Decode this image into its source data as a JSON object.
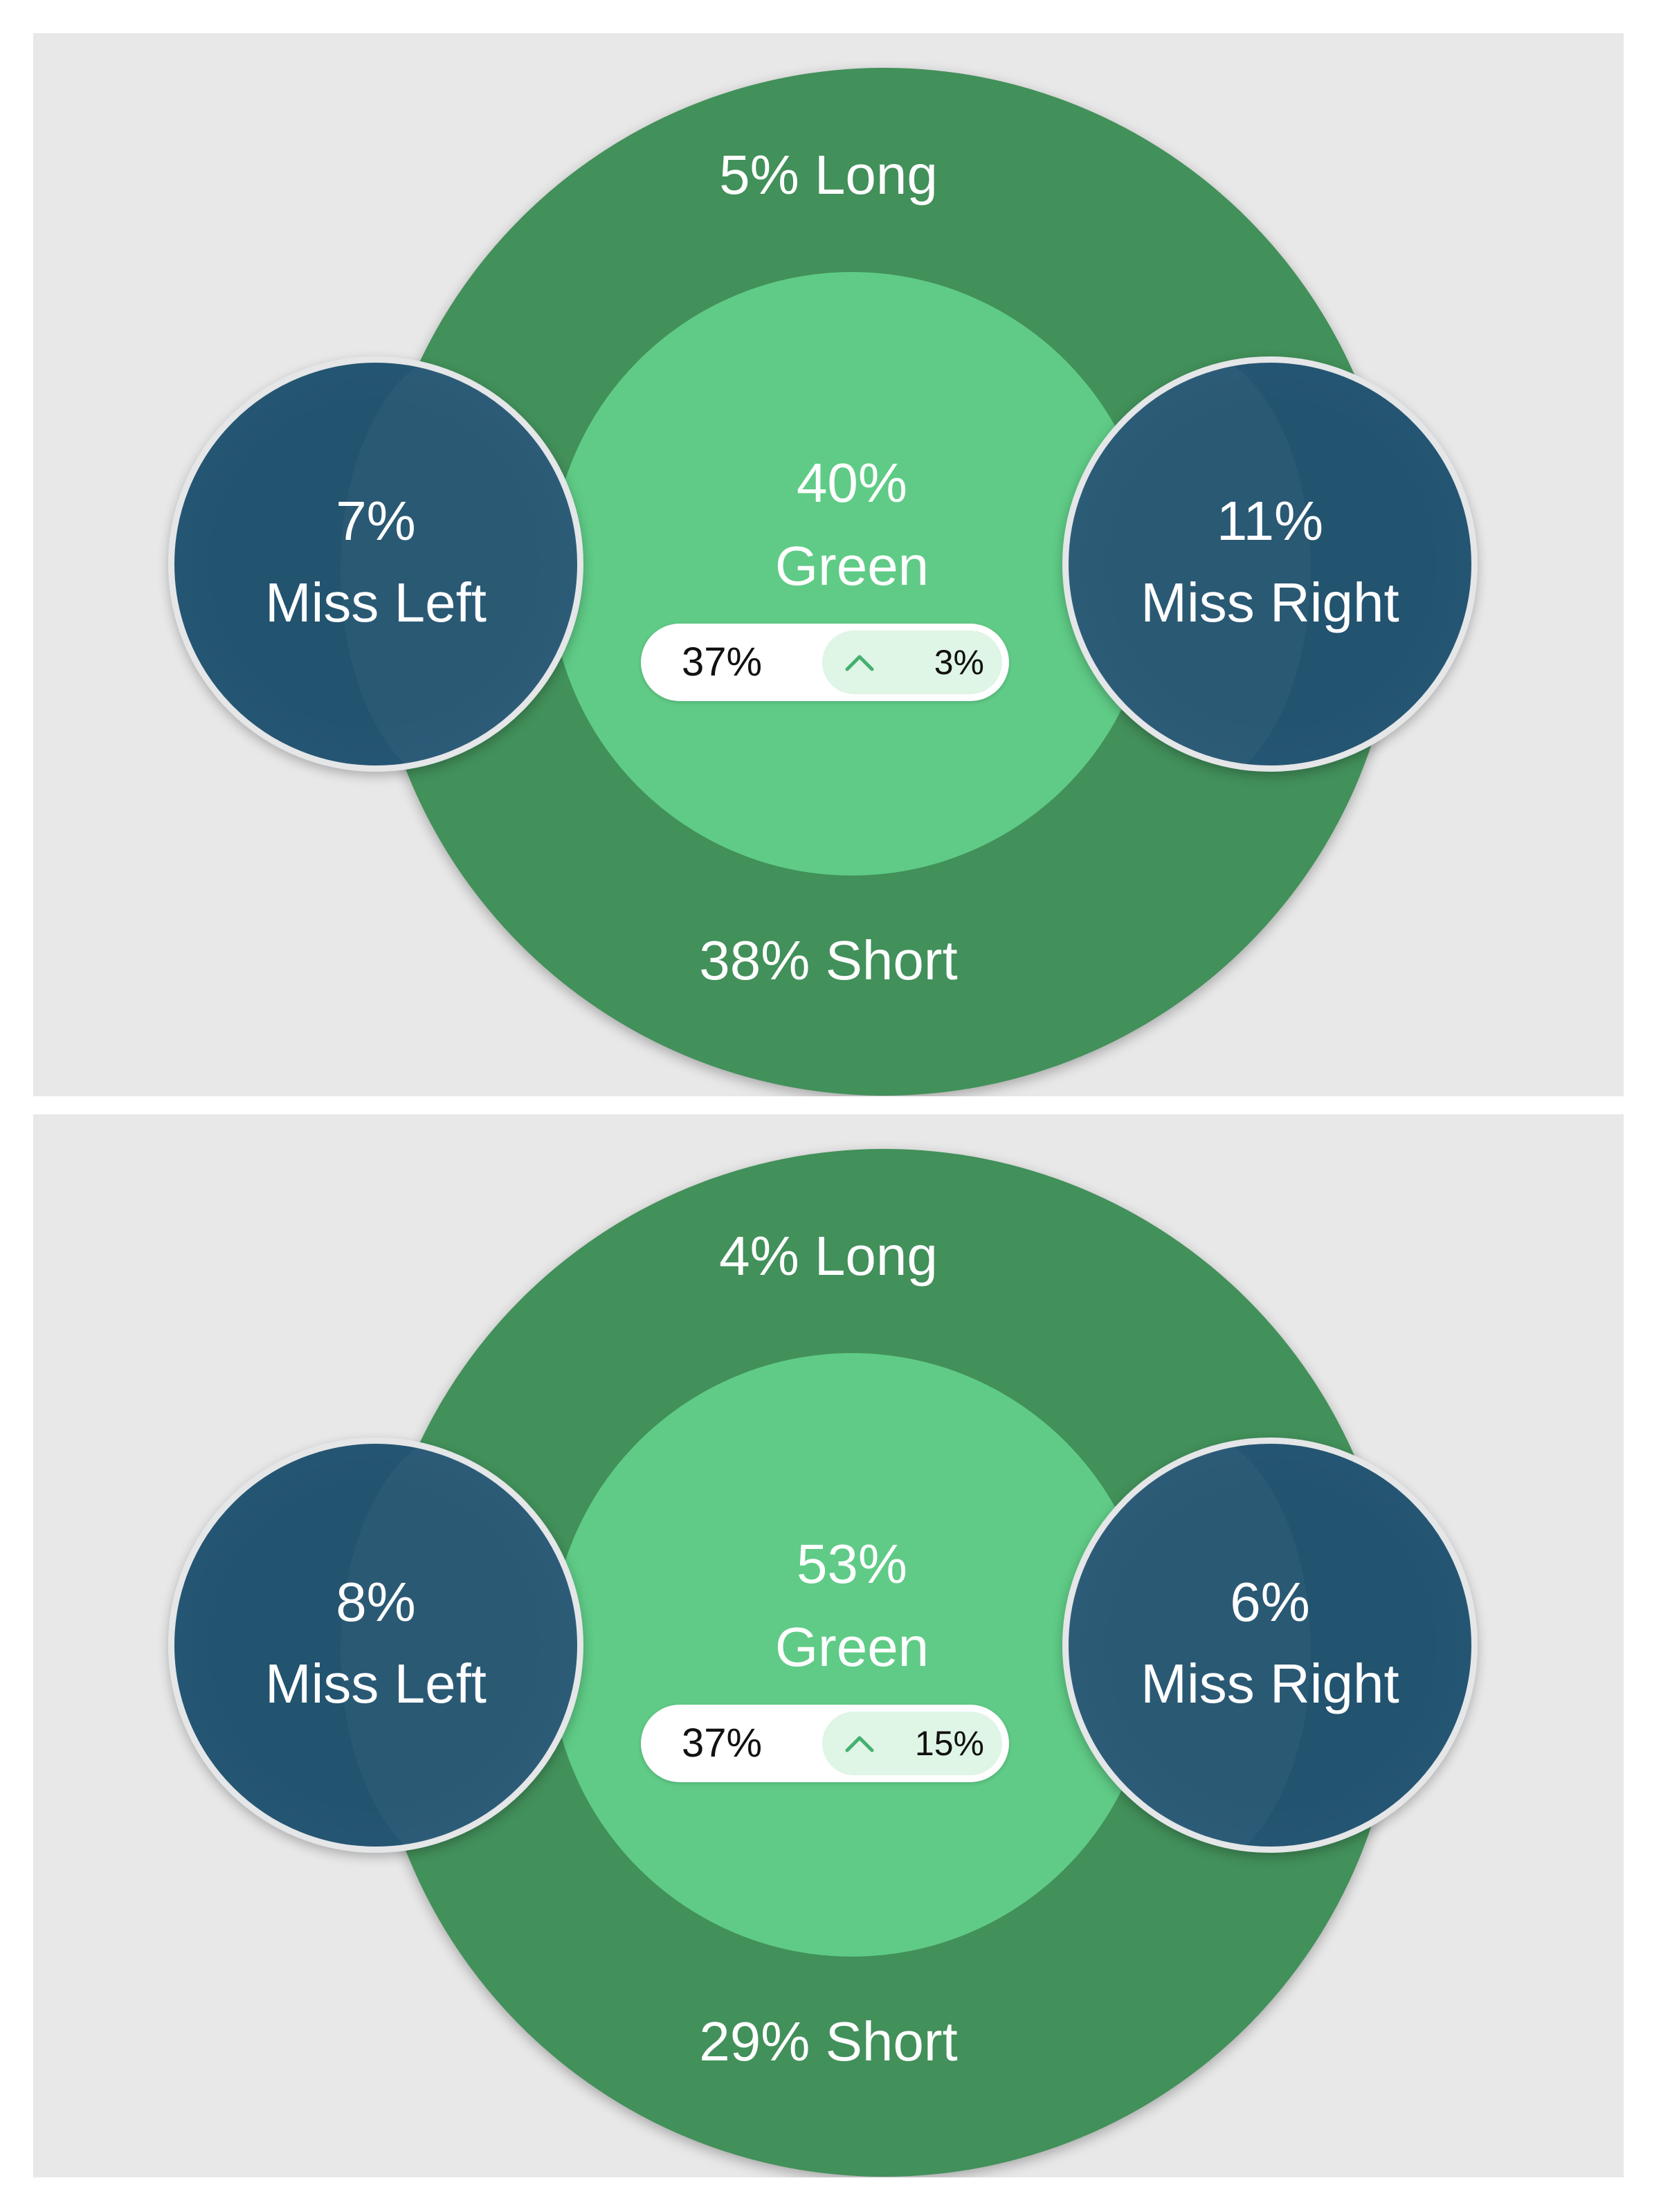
{
  "panels": [
    {
      "long": "5% Long",
      "short": "38% Short",
      "green_pct": "40%",
      "green_label": "Green",
      "miss_left_pct": "7%",
      "miss_left_label": "Miss Left",
      "miss_right_pct": "11%",
      "miss_right_label": "Miss Right",
      "baseline_pct": "37%",
      "change_pct": "3%",
      "change_direction": "up"
    },
    {
      "long": "4% Long",
      "short": "29% Short",
      "green_pct": "53%",
      "green_label": "Green",
      "miss_left_pct": "8%",
      "miss_left_label": "Miss Left",
      "miss_right_pct": "6%",
      "miss_right_label": "Miss Right",
      "baseline_pct": "37%",
      "change_pct": "15%",
      "change_direction": "up"
    }
  ],
  "colors": {
    "outer_ring": "#42905a",
    "green_circle": "#5fcb86",
    "miss_circle": "#22536f",
    "background": "#e8e8e8",
    "change_chip": "#dff5e6",
    "chevron": "#45b070"
  },
  "icons": {
    "change": "chevron-up-icon"
  }
}
